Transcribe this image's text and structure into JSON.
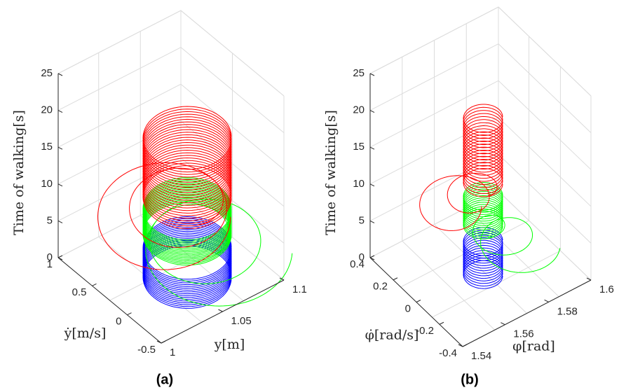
{
  "chart_data": [
    {
      "panel_label": "(a)",
      "type": "line",
      "kind": "3d-phase-portrait",
      "zlabel": "Time of walking[s]",
      "xlabel": "y[m]",
      "ylabel": "ẏ[m/s]",
      "zlim": [
        0,
        25
      ],
      "z_ticks": [
        "0",
        "5",
        "10",
        "15",
        "20",
        "25"
      ],
      "x_ticks": [
        "1",
        "1.05",
        "1.1"
      ],
      "y_ticks": [
        "-0.5",
        "0",
        "0.5",
        "1"
      ],
      "series": [
        {
          "name": "blue",
          "color": "#0000ff",
          "t_range": [
            0,
            4.5
          ],
          "loops": 17,
          "transient": false
        },
        {
          "name": "green",
          "color": "#00ff00",
          "t_range": [
            4.5,
            10.2
          ],
          "loops": 18,
          "transient": true
        },
        {
          "name": "red",
          "color": "#ff0000",
          "t_range": [
            9.8,
            20.6
          ],
          "loops": 24,
          "transient": true
        }
      ]
    },
    {
      "panel_label": "(b)",
      "type": "line",
      "kind": "3d-phase-portrait",
      "zlabel": "Time of walking[s]",
      "xlabel": "φ[rad]",
      "ylabel": "φ̇[rad/s]",
      "zlim": [
        0,
        25
      ],
      "z_ticks": [
        "0",
        "5",
        "10",
        "15",
        "20",
        "25"
      ],
      "x_ticks": [
        "1.54",
        "1.56",
        "1.58",
        "1.6"
      ],
      "y_ticks": [
        "-0.4",
        "-0.2",
        "0",
        "0.2",
        "0.4"
      ],
      "series": [
        {
          "name": "blue",
          "color": "#0000ff",
          "t_range": [
            0,
            4.5
          ],
          "loops": 14,
          "transient": false
        },
        {
          "name": "green",
          "color": "#00ff00",
          "t_range": [
            4.5,
            10.2
          ],
          "loops": 14,
          "transient": true
        },
        {
          "name": "red",
          "color": "#ff0000",
          "t_range": [
            9.8,
            20.1
          ],
          "loops": 22,
          "transient": true
        }
      ]
    }
  ]
}
